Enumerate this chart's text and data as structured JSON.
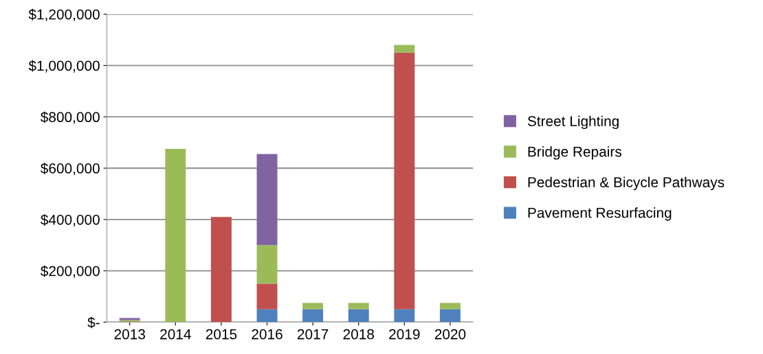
{
  "chart_data": {
    "type": "bar",
    "stacked": true,
    "categories": [
      "2013",
      "2014",
      "2015",
      "2016",
      "2017",
      "2018",
      "2019",
      "2020"
    ],
    "series": [
      {
        "name": "Pavement Resurfacing",
        "color": "#4f81bd",
        "values": [
          null,
          0,
          0,
          50000,
          50000,
          50000,
          50000,
          50000
        ]
      },
      {
        "name": "Pedestrian & Bicycle Pathways",
        "color": "#c0504d",
        "values": [
          3000,
          0,
          410000,
          100000,
          0,
          0,
          1000000,
          0
        ]
      },
      {
        "name": "Bridge Repairs",
        "color": "#9bbb59",
        "values": [
          5000,
          675000,
          0,
          150000,
          25000,
          25000,
          30000,
          25000
        ]
      },
      {
        "name": "Street Lighting",
        "color": "#8064a2",
        "values": [
          8000,
          0,
          0,
          355000,
          0,
          0,
          0,
          0
        ]
      }
    ],
    "ylim": [
      0,
      1200000
    ],
    "yticks": [
      {
        "value": 0,
        "label": "$-"
      },
      {
        "value": 200000,
        "label": "$200,000"
      },
      {
        "value": 400000,
        "label": "$400,000"
      },
      {
        "value": 600000,
        "label": "$600,000"
      },
      {
        "value": 800000,
        "label": "$800,000"
      },
      {
        "value": 1000000,
        "label": "$1,000,000"
      },
      {
        "value": 1200000,
        "label": "$1,200,000"
      }
    ],
    "grid": "y",
    "legend": "right"
  }
}
